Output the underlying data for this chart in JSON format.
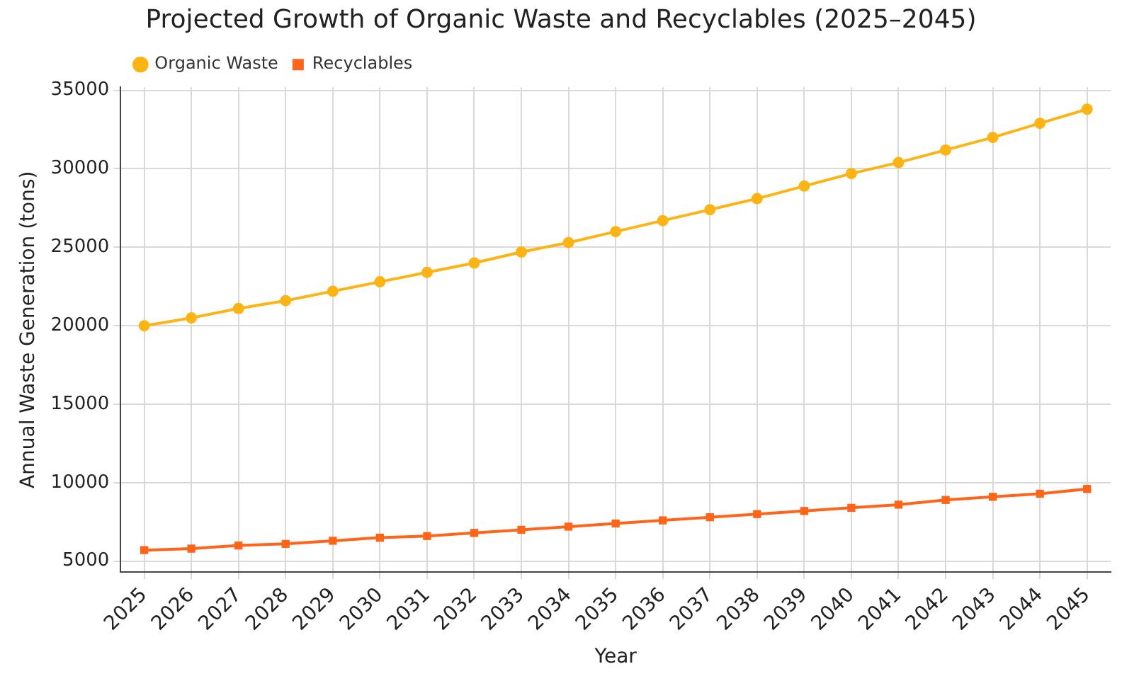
{
  "chart_data": {
    "type": "line",
    "title": "Projected Growth of Organic Waste and Recyclables (2025–2045)",
    "xlabel": "Year",
    "ylabel": "Annual Waste Generation (tons)",
    "categories": [
      "2025",
      "2026",
      "2027",
      "2028",
      "2029",
      "2030",
      "2031",
      "2032",
      "2033",
      "2034",
      "2035",
      "2036",
      "2037",
      "2038",
      "2039",
      "2040",
      "2041",
      "2042",
      "2043",
      "2044",
      "2045"
    ],
    "series": [
      {
        "name": "Organic Waste",
        "color": "#fcb415",
        "marker": "circle",
        "values": [
          20000,
          20500,
          21100,
          21600,
          22200,
          22800,
          23400,
          24000,
          24700,
          25300,
          26000,
          26700,
          27400,
          28100,
          28900,
          29700,
          30400,
          31200,
          32000,
          32900,
          33800
        ]
      },
      {
        "name": "Recyclables",
        "color": "#ff6419",
        "marker": "square",
        "values": [
          5700,
          5800,
          6000,
          6100,
          6300,
          6500,
          6600,
          6800,
          7000,
          7200,
          7400,
          7600,
          7800,
          8000,
          8200,
          8400,
          8600,
          8900,
          9100,
          9300,
          9600
        ]
      }
    ],
    "ylim": [
      4300,
      35200
    ],
    "yticks": [
      5000,
      10000,
      15000,
      20000,
      25000,
      30000,
      35000
    ],
    "grid": true,
    "legend": "top left",
    "line_style": "solid"
  }
}
